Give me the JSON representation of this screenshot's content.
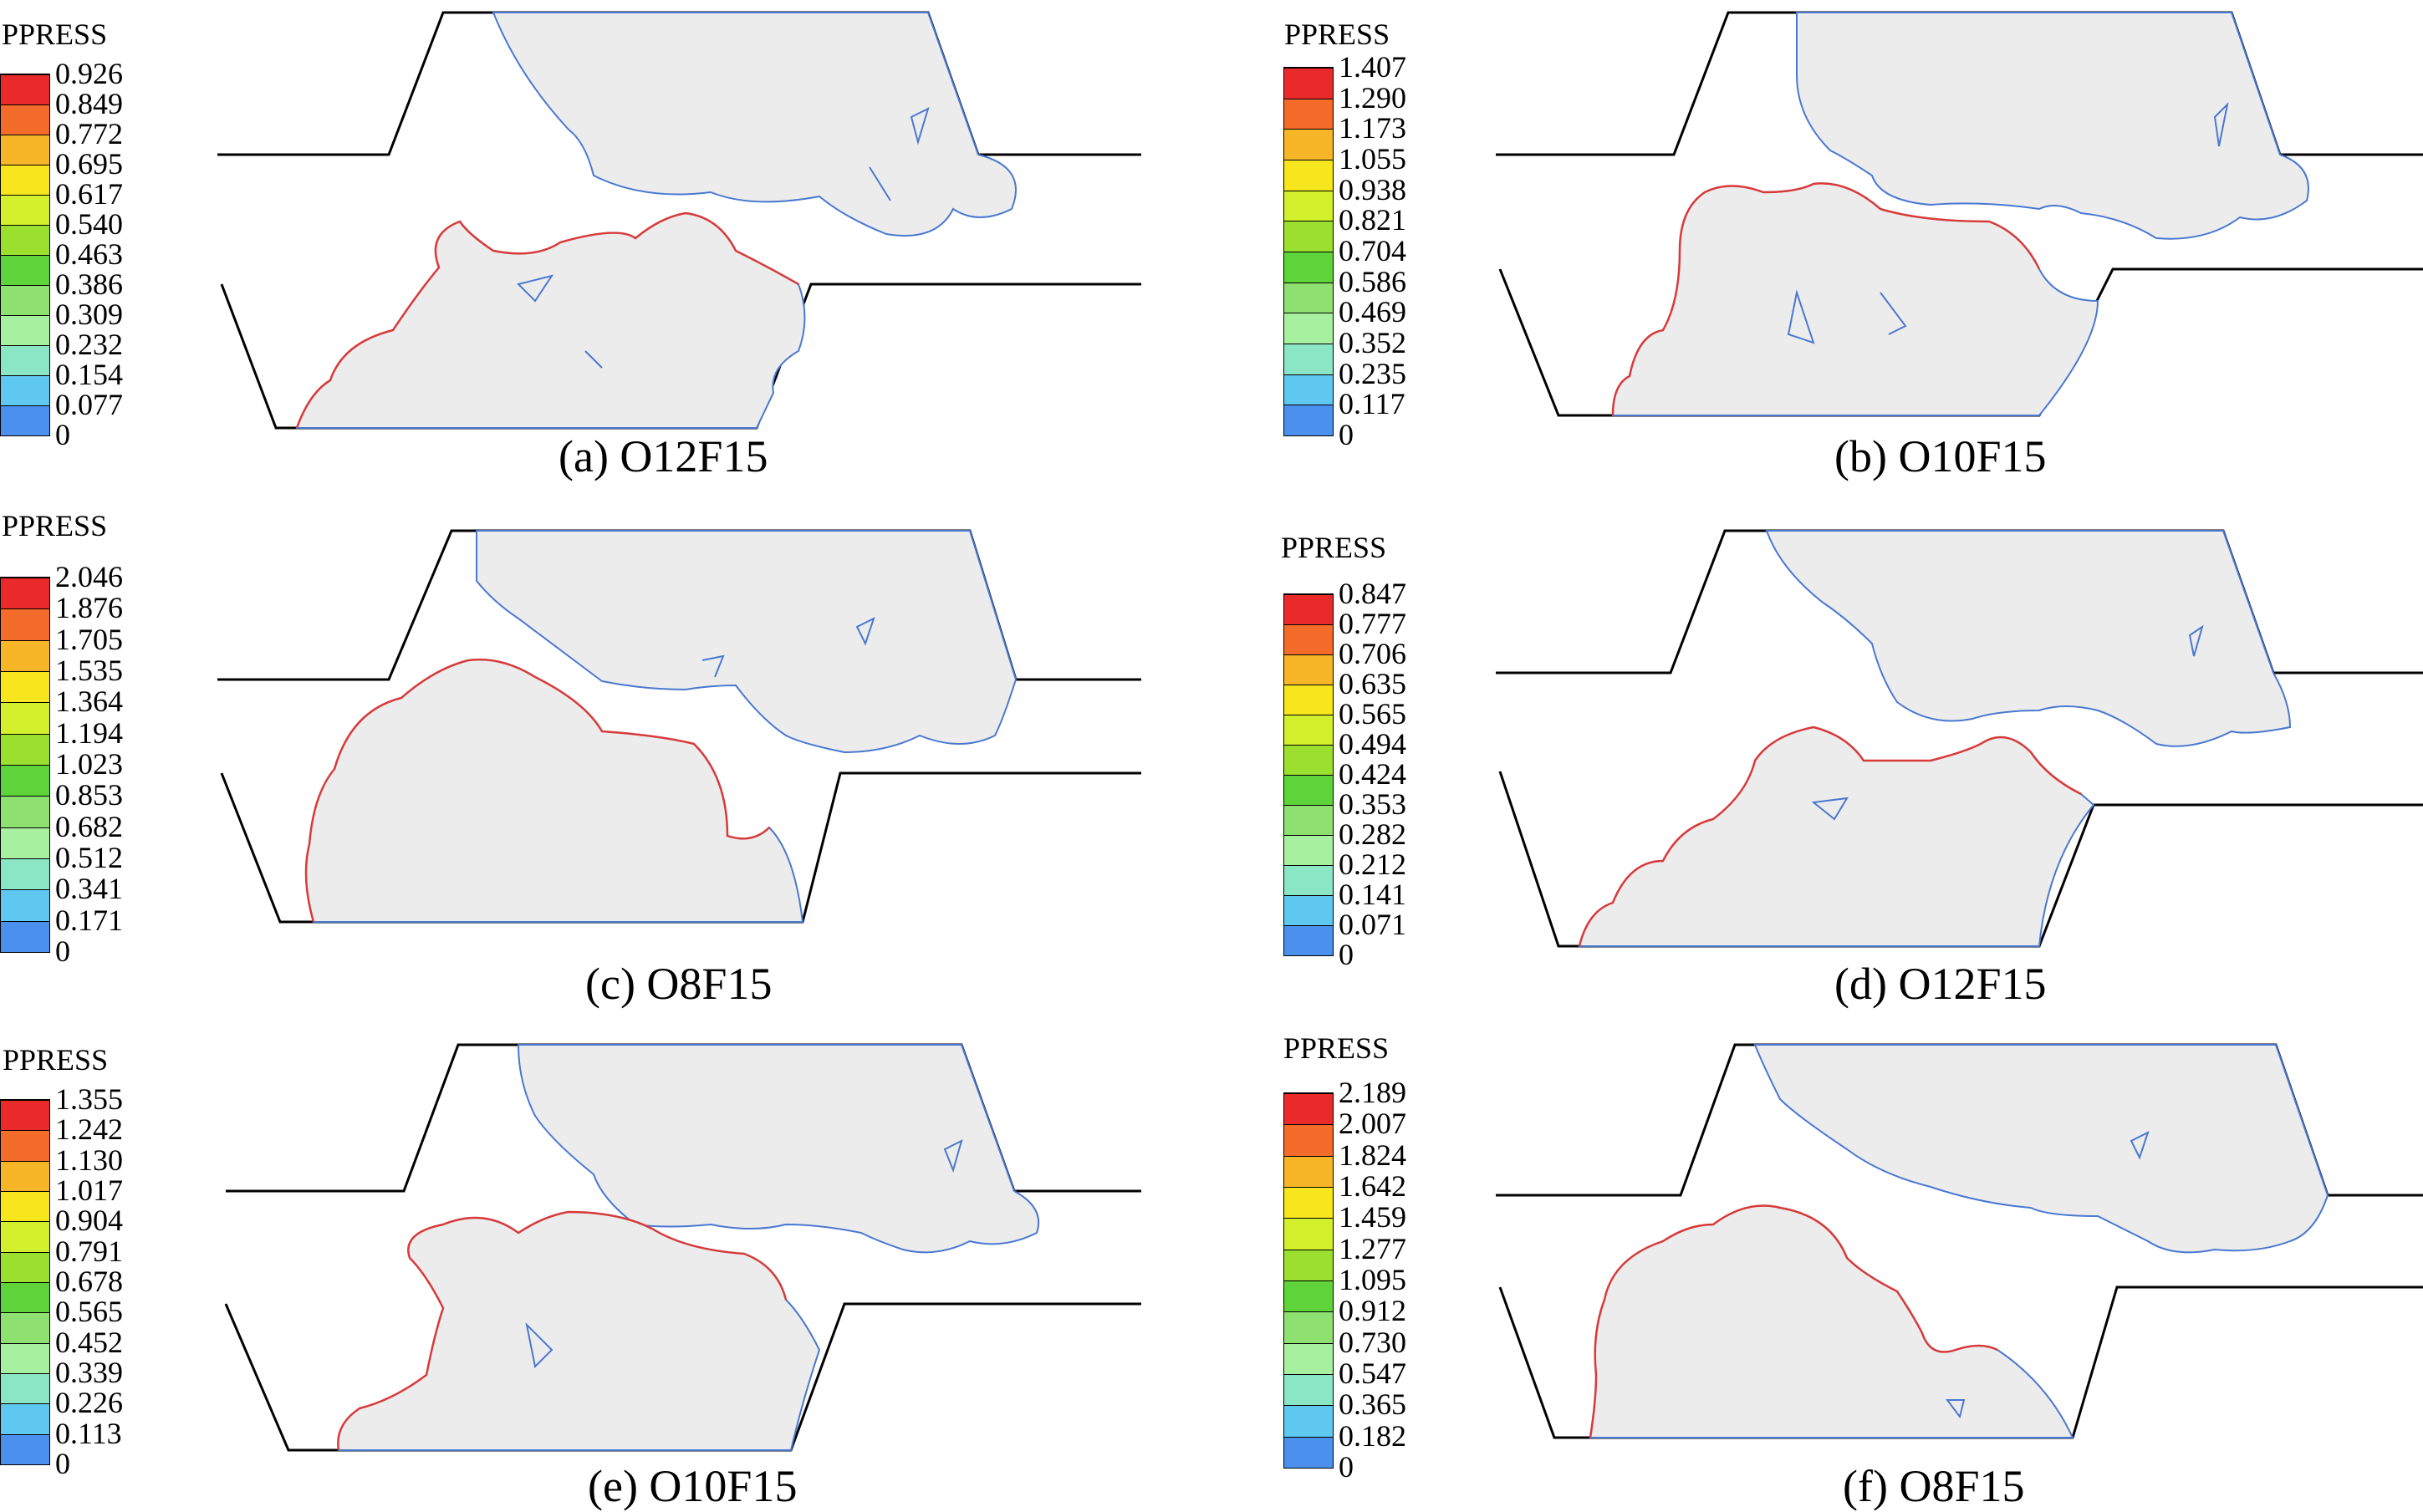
{
  "legend_title": "PPRESS",
  "colors": [
    "#3465e8",
    "#4a90ec",
    "#5fc8f0",
    "#8be6c6",
    "#a6f0a0",
    "#8ee070",
    "#5fd33a",
    "#9be02e",
    "#d2f02c",
    "#f7e61e",
    "#f7b628",
    "#f36c2a",
    "#ea2a2a"
  ],
  "panels": [
    {
      "caption": "(a) O12F15",
      "ticks": [
        "0.926",
        "0.849",
        "0.772",
        "0.695",
        "0.617",
        "0.540",
        "0.463",
        "0.386",
        "0.309",
        "0.232",
        "0.154",
        "0.077",
        "0"
      ]
    },
    {
      "caption": "(b) O10F15",
      "ticks": [
        "1.407",
        "1.290",
        "1.173",
        "1.055",
        "0.938",
        "0.821",
        "0.704",
        "0.586",
        "0.469",
        "0.352",
        "0.235",
        "0.117",
        "0"
      ]
    },
    {
      "caption": "(c) O8F15",
      "ticks": [
        "2.046",
        "1.876",
        "1.705",
        "1.535",
        "1.364",
        "1.194",
        "1.023",
        "0.853",
        "0.682",
        "0.512",
        "0.341",
        "0.171",
        "0"
      ]
    },
    {
      "caption": "(d) O12F15",
      "ticks": [
        "0.847",
        "0.777",
        "0.706",
        "0.635",
        "0.565",
        "0.494",
        "0.424",
        "0.353",
        "0.282",
        "0.212",
        "0.141",
        "0.071",
        "0"
      ]
    },
    {
      "caption": "(e) O10F15",
      "ticks": [
        "1.355",
        "1.242",
        "1.130",
        "1.017",
        "0.904",
        "0.791",
        "0.678",
        "0.565",
        "0.452",
        "0.339",
        "0.226",
        "0.113",
        "0"
      ]
    },
    {
      "caption": "(f) O8F15",
      "ticks": [
        "2.189",
        "2.007",
        "1.824",
        "1.642",
        "1.459",
        "1.277",
        "1.095",
        "0.912",
        "0.730",
        "0.547",
        "0.365",
        "0.182",
        "0"
      ]
    }
  ]
}
